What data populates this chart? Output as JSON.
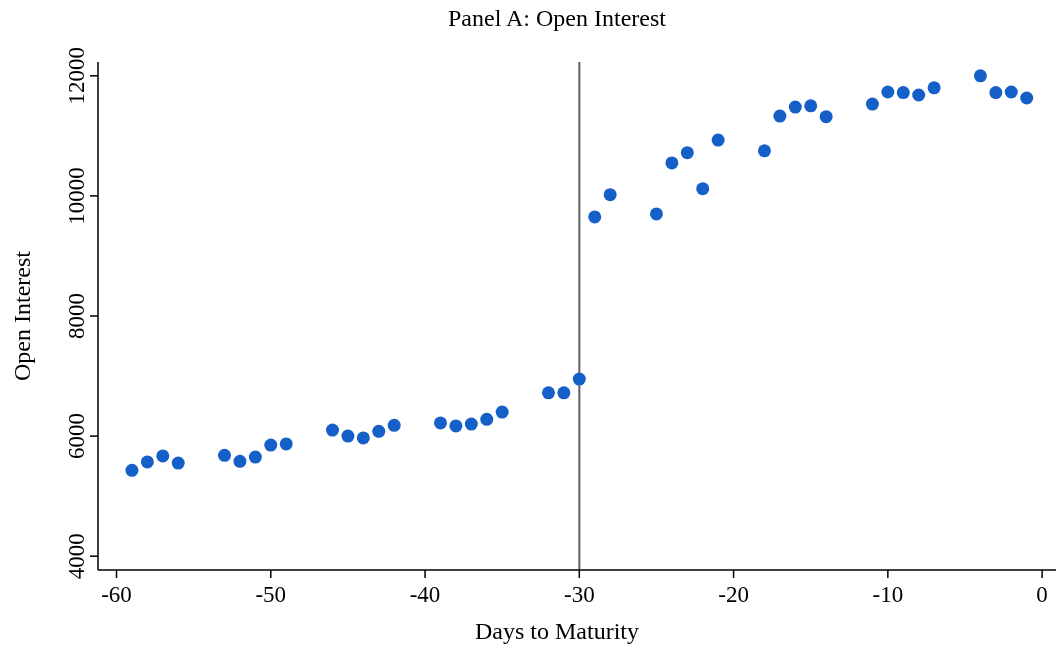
{
  "chart_data": {
    "type": "scatter",
    "title": "Panel A: Open Interest",
    "xlabel": "Days to Maturity",
    "ylabel": "Open Interest",
    "x": [
      -59,
      -58,
      -57,
      -56,
      -53,
      -52,
      -51,
      -50,
      -49,
      -46,
      -45,
      -44,
      -43,
      -42,
      -39,
      -38,
      -37,
      -36,
      -35,
      -32,
      -31,
      -30,
      -29,
      -28,
      -25,
      -24,
      -23,
      -22,
      -21,
      -18,
      -17,
      -16,
      -15,
      -14,
      -11,
      -10,
      -9,
      -8,
      -7,
      -4,
      -3,
      -2,
      -1
    ],
    "series": [
      {
        "color": "#1560c8",
        "values": [
          5430,
          5570,
          5670,
          5550,
          5680,
          5580,
          5650,
          5850,
          5870,
          6100,
          6000,
          5970,
          6080,
          6180,
          6220,
          6170,
          6200,
          6280,
          6400,
          6720,
          6720,
          6950,
          9650,
          10020,
          9700,
          10550,
          10720,
          10120,
          10930,
          10750,
          11330,
          11480,
          11500,
          11320,
          11530,
          11730,
          11720,
          11680,
          11800,
          12000,
          11720,
          11730,
          11630
        ]
      }
    ],
    "xlim": [
      -61.2,
      0.9
    ],
    "xticks": [
      -60,
      -50,
      -40,
      -30,
      -20,
      -10,
      0
    ],
    "ylim": [
      3770,
      12230
    ],
    "yticks": [
      4000,
      6000,
      8000,
      10000,
      12000
    ],
    "ref_lines": [
      {
        "axis": "x",
        "value": -30,
        "color": "#606060"
      }
    ],
    "marker": "circle",
    "grid": false
  }
}
